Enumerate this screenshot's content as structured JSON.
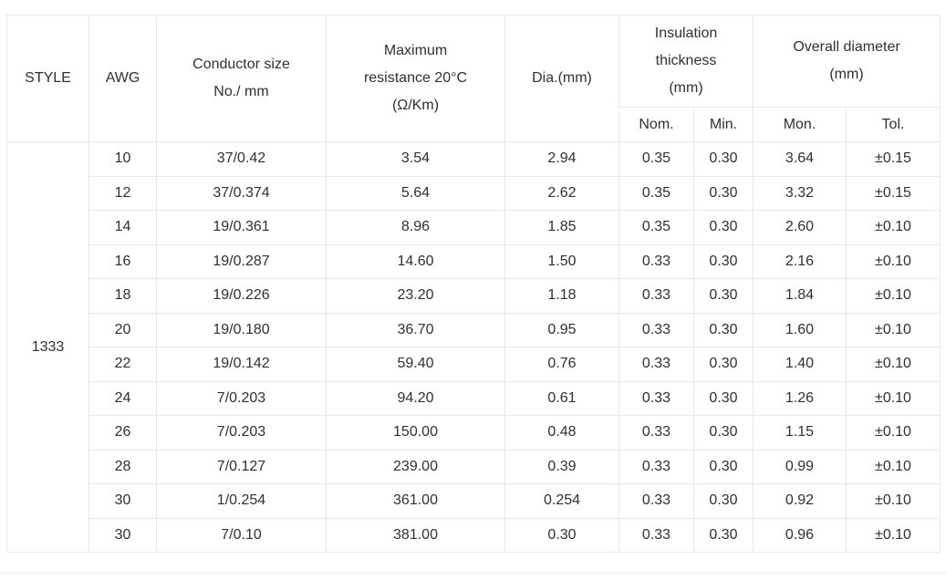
{
  "table": {
    "headers": {
      "style": "STYLE",
      "awg": "AWG",
      "conductor_size": "Conductor size\nNo./ mm",
      "max_resistance": "Maximum\nresistance 20°C\n(Ω/Km)",
      "dia": "Dia.(mm)",
      "insulation_thickness": "Insulation\nthickness\n(mm)",
      "overall_diameter": "Overall diameter\n(mm)",
      "nom": "Nom.",
      "min": "Min.",
      "mon": "Mon.",
      "tol": "Tol."
    },
    "style_value": "1333",
    "rows": [
      {
        "awg": "10",
        "conductor": "37/0.42",
        "resistance": "3.54",
        "dia": "2.94",
        "nom": "0.35",
        "min": "0.30",
        "mon": "3.64",
        "tol": "±0.15"
      },
      {
        "awg": "12",
        "conductor": "37/0.374",
        "resistance": "5.64",
        "dia": "2.62",
        "nom": "0.35",
        "min": "0.30",
        "mon": "3.32",
        "tol": "±0.15"
      },
      {
        "awg": "14",
        "conductor": "19/0.361",
        "resistance": "8.96",
        "dia": "1.85",
        "nom": "0.35",
        "min": "0.30",
        "mon": "2.60",
        "tol": "±0.10"
      },
      {
        "awg": "16",
        "conductor": "19/0.287",
        "resistance": "14.60",
        "dia": "1.50",
        "nom": "0.33",
        "min": "0.30",
        "mon": "2.16",
        "tol": "±0.10"
      },
      {
        "awg": "18",
        "conductor": "19/0.226",
        "resistance": "23.20",
        "dia": "1.18",
        "nom": "0.33",
        "min": "0.30",
        "mon": "1.84",
        "tol": "±0.10"
      },
      {
        "awg": "20",
        "conductor": "19/0.180",
        "resistance": "36.70",
        "dia": "0.95",
        "nom": "0.33",
        "min": "0.30",
        "mon": "1.60",
        "tol": "±0.10"
      },
      {
        "awg": "22",
        "conductor": "19/0.142",
        "resistance": "59.40",
        "dia": "0.76",
        "nom": "0.33",
        "min": "0.30",
        "mon": "1.40",
        "tol": "±0.10"
      },
      {
        "awg": "24",
        "conductor": "7/0.203",
        "resistance": "94.20",
        "dia": "0.61",
        "nom": "0.33",
        "min": "0.30",
        "mon": "1.26",
        "tol": "±0.10"
      },
      {
        "awg": "26",
        "conductor": "7/0.203",
        "resistance": "150.00",
        "dia": "0.48",
        "nom": "0.33",
        "min": "0.30",
        "mon": "1.15",
        "tol": "±0.10"
      },
      {
        "awg": "28",
        "conductor": "7/0.127",
        "resistance": "239.00",
        "dia": "0.39",
        "nom": "0.33",
        "min": "0.30",
        "mon": "0.99",
        "tol": "±0.10"
      },
      {
        "awg": "30",
        "conductor": "1/0.254",
        "resistance": "361.00",
        "dia": "0.254",
        "nom": "0.33",
        "min": "0.30",
        "mon": "0.92",
        "tol": "±0.10"
      },
      {
        "awg": "30",
        "conductor": "7/0.10",
        "resistance": "381.00",
        "dia": "0.30",
        "nom": "0.33",
        "min": "0.30",
        "mon": "0.96",
        "tol": "±0.10"
      }
    ]
  }
}
